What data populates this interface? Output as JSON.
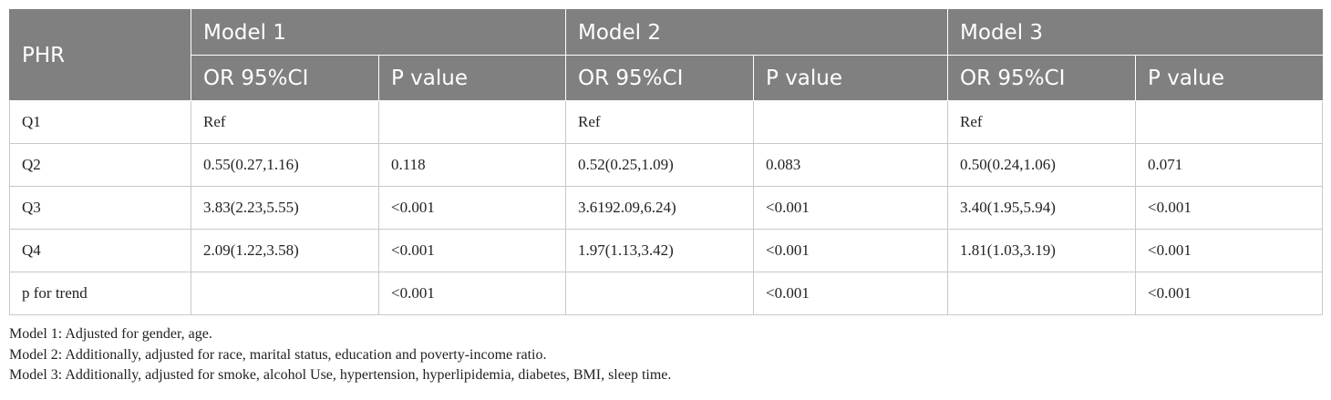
{
  "table": {
    "header": {
      "row1": [
        "PHR",
        "Model 1",
        "Model 2",
        "Model 3"
      ],
      "row2": [
        "OR 95%CI",
        "P value",
        "OR 95%CI",
        "P value",
        "OR 95%CI",
        "P value"
      ]
    },
    "rows": [
      [
        "Q1",
        "Ref",
        "",
        "Ref",
        "",
        "Ref",
        ""
      ],
      [
        "Q2",
        "0.55(0.27,1.16)",
        "0.118",
        "0.52(0.25,1.09)",
        "0.083",
        "0.50(0.24,1.06)",
        "0.071"
      ],
      [
        "Q3",
        "3.83(2.23,5.55)",
        "<0.001",
        "3.6192.09,6.24)",
        "<0.001",
        "3.40(1.95,5.94)",
        "<0.001"
      ],
      [
        "Q4",
        "2.09(1.22,3.58)",
        "<0.001",
        "1.97(1.13,3.42)",
        "<0.001",
        "1.81(1.03,3.19)",
        "<0.001"
      ],
      [
        "p for trend",
        "",
        "<0.001",
        "",
        "<0.001",
        "",
        "<0.001"
      ]
    ]
  },
  "footnotes": [
    "Model 1: Adjusted for gender, age.",
    "Model 2: Additionally, adjusted for race, marital status, education and poverty-income ratio.",
    "Model 3: Additionally, adjusted for smoke, alcohol Use, hypertension, hyperlipidemia, diabetes, BMI, sleep time."
  ],
  "colors": {
    "header_bg": "#808080",
    "header_text": "#ffffff",
    "grid_line": "#c8c8c8"
  }
}
